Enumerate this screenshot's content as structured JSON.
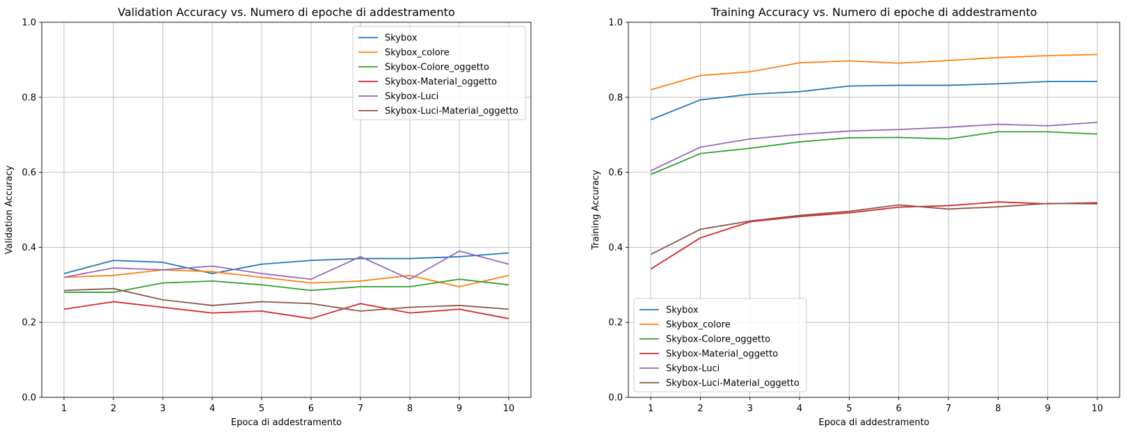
{
  "chart_data": [
    {
      "type": "line",
      "title": "Validation Accuracy vs. Numero di epoche di addestramento",
      "xlabel": "Epoca di addestramento",
      "ylabel": "Validation Accuracy",
      "x": [
        1,
        2,
        3,
        4,
        5,
        6,
        7,
        8,
        9,
        10
      ],
      "xticks": [
        "1",
        "2",
        "3",
        "4",
        "5",
        "6",
        "7",
        "8",
        "9",
        "10"
      ],
      "yticks": [
        "0.0",
        "0.2",
        "0.4",
        "0.6",
        "0.8",
        "1.0"
      ],
      "ylim": [
        0,
        1
      ],
      "grid": true,
      "legend_position": "top-right",
      "series": [
        {
          "name": "Skybox",
          "color": "#1f77b4",
          "values": [
            0.33,
            0.365,
            0.36,
            0.33,
            0.355,
            0.365,
            0.37,
            0.37,
            0.375,
            0.385
          ]
        },
        {
          "name": "Skybox_colore",
          "color": "#ff7f0e",
          "values": [
            0.32,
            0.325,
            0.34,
            0.335,
            0.32,
            0.305,
            0.31,
            0.325,
            0.295,
            0.325
          ]
        },
        {
          "name": "Skybox-Colore_oggetto",
          "color": "#2ca02c",
          "values": [
            0.28,
            0.28,
            0.305,
            0.31,
            0.3,
            0.285,
            0.295,
            0.295,
            0.315,
            0.3
          ]
        },
        {
          "name": "Skybox-Material_oggetto",
          "color": "#d62728",
          "values": [
            0.235,
            0.255,
            0.24,
            0.225,
            0.23,
            0.21,
            0.25,
            0.225,
            0.235,
            0.21
          ]
        },
        {
          "name": "Skybox-Luci",
          "color": "#9467bd",
          "values": [
            0.32,
            0.345,
            0.34,
            0.35,
            0.33,
            0.315,
            0.375,
            0.315,
            0.39,
            0.355
          ]
        },
        {
          "name": "Skybox-Luci-Material_oggetto",
          "color": "#8c564b",
          "values": [
            0.285,
            0.29,
            0.26,
            0.245,
            0.255,
            0.25,
            0.23,
            0.24,
            0.245,
            0.235
          ]
        }
      ]
    },
    {
      "type": "line",
      "title": "Training Accuracy vs. Numero di epoche di addestramento",
      "xlabel": "Epoca di addestramento",
      "ylabel": "Training Accuracy",
      "x": [
        1,
        2,
        3,
        4,
        5,
        6,
        7,
        8,
        9,
        10
      ],
      "xticks": [
        "1",
        "2",
        "3",
        "4",
        "5",
        "6",
        "7",
        "8",
        "9",
        "10"
      ],
      "yticks": [
        "0.0",
        "0.2",
        "0.4",
        "0.6",
        "0.8",
        "1.0"
      ],
      "ylim": [
        0,
        1
      ],
      "grid": true,
      "legend_position": "bottom-left",
      "series": [
        {
          "name": "Skybox",
          "color": "#1f77b4",
          "values": [
            0.74,
            0.793,
            0.808,
            0.815,
            0.83,
            0.832,
            0.832,
            0.836,
            0.842,
            0.842
          ]
        },
        {
          "name": "Skybox_colore",
          "color": "#ff7f0e",
          "values": [
            0.82,
            0.858,
            0.868,
            0.892,
            0.897,
            0.891,
            0.898,
            0.906,
            0.911,
            0.914
          ]
        },
        {
          "name": "Skybox-Colore_oggetto",
          "color": "#2ca02c",
          "values": [
            0.594,
            0.65,
            0.664,
            0.681,
            0.692,
            0.693,
            0.689,
            0.708,
            0.708,
            0.702
          ]
        },
        {
          "name": "Skybox-Material_oggetto",
          "color": "#d62728",
          "values": [
            0.342,
            0.425,
            0.468,
            0.482,
            0.492,
            0.507,
            0.511,
            0.521,
            0.516,
            0.519
          ]
        },
        {
          "name": "Skybox-Luci",
          "color": "#9467bd",
          "values": [
            0.604,
            0.667,
            0.689,
            0.701,
            0.71,
            0.714,
            0.72,
            0.728,
            0.724,
            0.733
          ]
        },
        {
          "name": "Skybox-Luci-Material_oggetto",
          "color": "#8c564b",
          "values": [
            0.381,
            0.448,
            0.47,
            0.485,
            0.496,
            0.513,
            0.502,
            0.508,
            0.517,
            0.516
          ]
        }
      ]
    }
  ]
}
